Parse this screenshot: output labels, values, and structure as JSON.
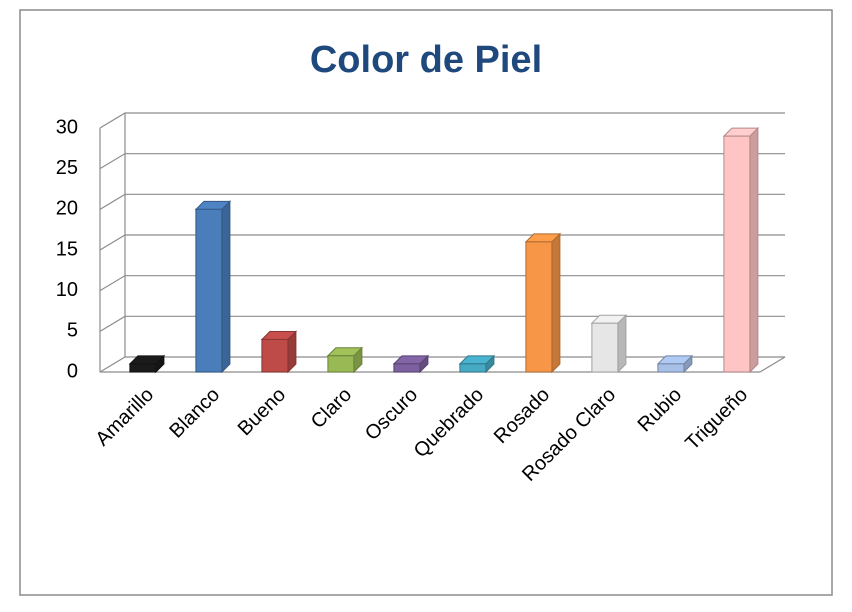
{
  "chart_data": {
    "type": "bar3d",
    "title": "Color de Piel",
    "categories": [
      "Amarillo",
      "Blanco",
      "Bueno",
      "Claro",
      "Oscuro",
      "Quebrado",
      "Rosado",
      "Rosado Claro",
      "Rubio",
      "Trigueño"
    ],
    "values": [
      1,
      20,
      4,
      2,
      1,
      1,
      16,
      6,
      1,
      29
    ],
    "colors": [
      "#1a1a1a",
      "#4a7ebb",
      "#be4b48",
      "#98b954",
      "#7d60a0",
      "#46aac5",
      "#f79646",
      "#e6e6e6",
      "#a7c0e8",
      "#ffc4c4"
    ],
    "ylim": [
      0,
      30
    ],
    "yticks": [
      0,
      5,
      10,
      15,
      20,
      25,
      30
    ],
    "grid": true
  }
}
